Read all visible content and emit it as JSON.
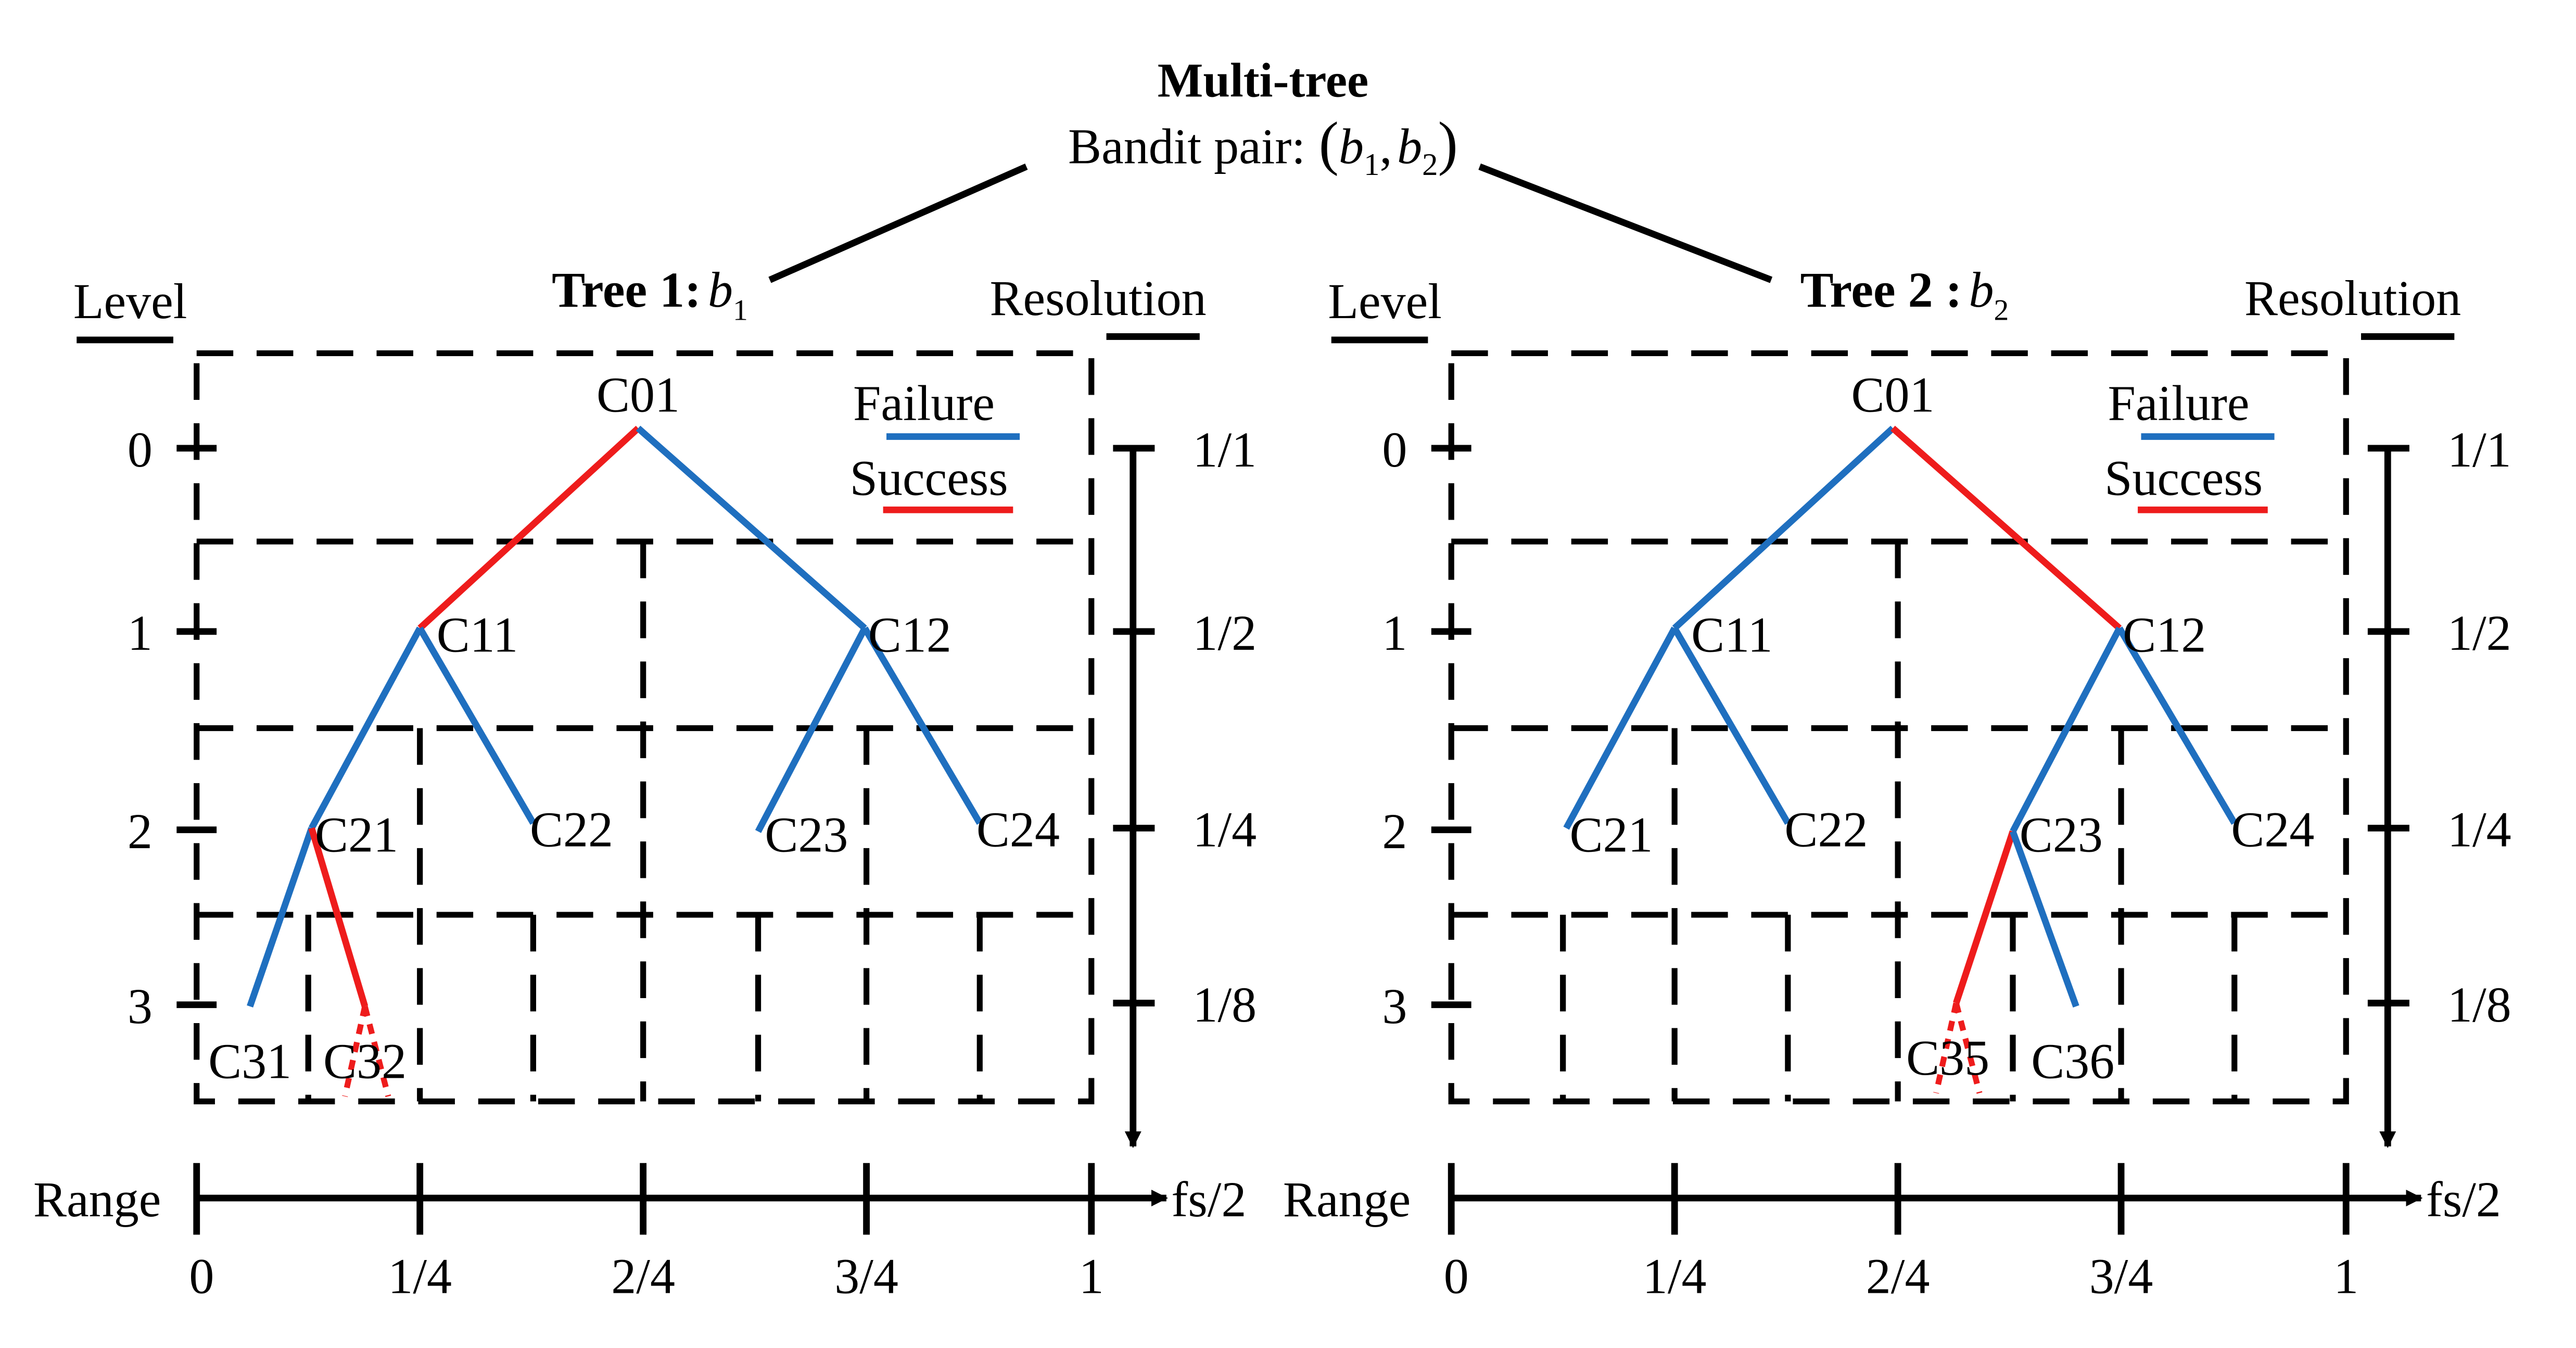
{
  "header": {
    "title": "Multi-tree",
    "subtitle_prefix": "Bandit pair:",
    "b": "b",
    "sub1": "1",
    "sub2": "2",
    "comma": ","
  },
  "colors": {
    "failure": "#1f6fbf",
    "success": "#ee1c1c",
    "frame": "#000000"
  },
  "legend": {
    "failure": "Failure",
    "success": "Success"
  },
  "axis": {
    "level_label": "Level",
    "resolution_label": "Resolution",
    "range_label": "Range",
    "range_end_label": "fs/2",
    "levels": [
      "0",
      "1",
      "2",
      "3"
    ],
    "resolutions": [
      "1/1",
      "1/2",
      "1/4",
      "1/8"
    ],
    "range_ticks": [
      "0",
      "1/4",
      "2/4",
      "3/4",
      "1"
    ]
  },
  "trees": [
    {
      "title_bold": "Tree 1:",
      "title_var": "b",
      "title_sub": "1",
      "nodes": {
        "C01": "C01",
        "C11": "C11",
        "C12": "C12",
        "C21": "C21",
        "C22": "C22",
        "C23": "C23",
        "C24": "C24",
        "C31": "C31",
        "C32": "C32"
      },
      "edges": [
        {
          "from": "C01",
          "to": "C11",
          "result": "success"
        },
        {
          "from": "C01",
          "to": "C12",
          "result": "failure"
        },
        {
          "from": "C11",
          "to": "C21",
          "result": "failure"
        },
        {
          "from": "C11",
          "to": "C22",
          "result": "failure"
        },
        {
          "from": "C12",
          "to": "C23",
          "result": "failure"
        },
        {
          "from": "C12",
          "to": "C24",
          "result": "failure"
        },
        {
          "from": "C21",
          "to": "C31",
          "result": "failure"
        },
        {
          "from": "C21",
          "to": "C32",
          "result": "success"
        }
      ]
    },
    {
      "title_bold": "Tree 2 :",
      "title_var": "b",
      "title_sub": "2",
      "nodes": {
        "C01": "C01",
        "C11": "C11",
        "C12": "C12",
        "C21": "C21",
        "C22": "C22",
        "C23": "C23",
        "C24": "C24",
        "C35": "C35",
        "C36": "C36"
      },
      "edges": [
        {
          "from": "C01",
          "to": "C11",
          "result": "failure"
        },
        {
          "from": "C01",
          "to": "C12",
          "result": "success"
        },
        {
          "from": "C11",
          "to": "C21",
          "result": "failure"
        },
        {
          "from": "C11",
          "to": "C22",
          "result": "failure"
        },
        {
          "from": "C12",
          "to": "C23",
          "result": "failure"
        },
        {
          "from": "C12",
          "to": "C24",
          "result": "failure"
        },
        {
          "from": "C23",
          "to": "C35",
          "result": "success"
        },
        {
          "from": "C23",
          "to": "C36",
          "result": "failure"
        }
      ]
    }
  ]
}
